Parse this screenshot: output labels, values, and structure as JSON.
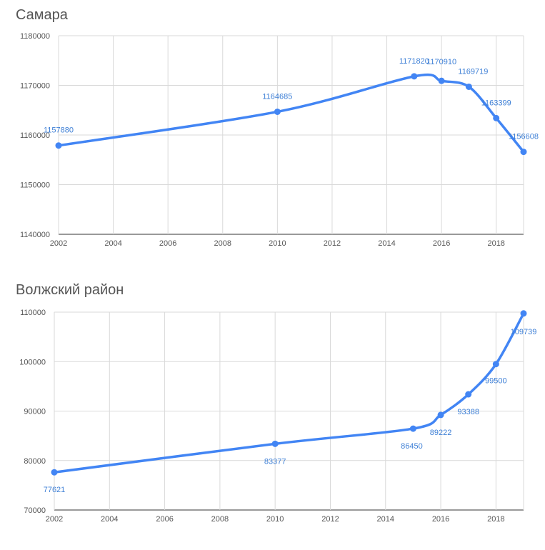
{
  "chart_data": [
    {
      "type": "line",
      "title": "Самара",
      "xlabel": "",
      "ylabel": "",
      "x": [
        2002,
        2010,
        2015,
        2016,
        2017,
        2018,
        2019
      ],
      "series": [
        {
          "values": [
            1157880,
            1164685,
            1171820,
            1170910,
            1169719,
            1163399,
            1156608
          ]
        }
      ],
      "data_labels": [
        "1157880",
        "1164685",
        "1171820",
        "1170910",
        "1169719",
        "1163399",
        "1156608"
      ],
      "xlim": [
        2002,
        2019
      ],
      "ylim": [
        1140000,
        1180000
      ],
      "x_ticks": [
        2002,
        2004,
        2006,
        2008,
        2010,
        2012,
        2014,
        2016,
        2018
      ],
      "y_ticks": [
        1140000,
        1150000,
        1160000,
        1170000,
        1180000
      ],
      "x_tick_labels": [
        "2002",
        "2004",
        "2006",
        "2008",
        "2010",
        "2012",
        "2014",
        "2016",
        "2018"
      ],
      "y_tick_labels": [
        "1140000",
        "1150000",
        "1160000",
        "1170000",
        "1180000"
      ],
      "grid": true,
      "legend": "none",
      "color": "#4285f4"
    },
    {
      "type": "line",
      "title": "Волжский район",
      "xlabel": "",
      "ylabel": "",
      "x": [
        2002,
        2010,
        2015,
        2016,
        2017,
        2018,
        2019
      ],
      "series": [
        {
          "values": [
            77621,
            83377,
            86450,
            89222,
            93388,
            99500,
            109739
          ]
        }
      ],
      "data_labels": [
        "77621",
        "83377",
        "86450",
        "89222",
        "93388",
        "99500",
        "109739"
      ],
      "xlim": [
        2002,
        2019
      ],
      "ylim": [
        70000,
        110000
      ],
      "x_ticks": [
        2002,
        2004,
        2006,
        2008,
        2010,
        2012,
        2014,
        2016,
        2018
      ],
      "y_ticks": [
        70000,
        80000,
        90000,
        100000,
        110000
      ],
      "x_tick_labels": [
        "2002",
        "2004",
        "2006",
        "2008",
        "2010",
        "2012",
        "2014",
        "2016",
        "2018"
      ],
      "y_tick_labels": [
        "70000",
        "80000",
        "90000",
        "100000",
        "110000"
      ],
      "grid": true,
      "legend": "none",
      "color": "#4285f4"
    }
  ]
}
